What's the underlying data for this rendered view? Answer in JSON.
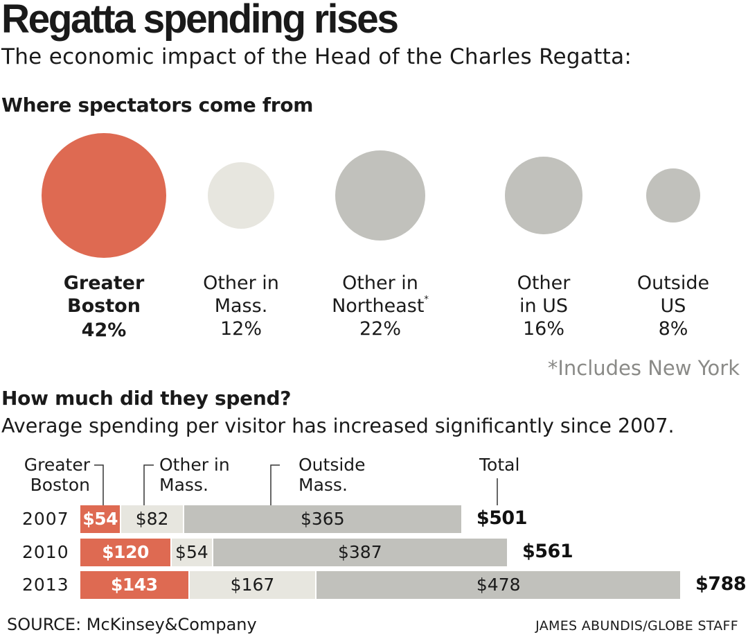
{
  "title": "Regatta spending rises",
  "subtitle": "The economic impact of the Head of the Charles Regatta:",
  "footnote": "*Includes New York",
  "source": "SOURCE: McKinsey&Company",
  "credit": "JAMES ABUNDIS/GLOBE STAFF",
  "colors": {
    "highlight": "#de6a52",
    "light_gray": "#e7e6df",
    "gray": "#c1c1bc",
    "footnote_gray": "#8a8a87"
  },
  "chart_data": [
    {
      "type": "bubble",
      "title": "Where spectators come from",
      "categories": [
        {
          "name_lines": [
            "Greater",
            "Boston"
          ],
          "value": 42,
          "label": "42%",
          "highlight": true
        },
        {
          "name_lines": [
            "Other in",
            "Mass."
          ],
          "value": 12,
          "label": "12%",
          "highlight": false
        },
        {
          "name_lines": [
            "Other in",
            "Northeast"
          ],
          "footnote_mark": "*",
          "value": 22,
          "label": "22%",
          "highlight": false
        },
        {
          "name_lines": [
            "Other",
            "in US"
          ],
          "value": 16,
          "label": "16%",
          "highlight": false
        },
        {
          "name_lines": [
            "Outside",
            "US"
          ],
          "value": 8,
          "label": "8%",
          "highlight": false
        }
      ],
      "unit": "%"
    },
    {
      "type": "stacked-bar",
      "orientation": "horizontal",
      "title": "How much did they spend?",
      "subtitle": "Average spending per visitor has increased significantly since 2007.",
      "legend": {
        "greater_boston": "Greater\nBoston",
        "other_mass": "Other in\nMass.",
        "outside_mass": "Outside\nMass.",
        "total": "Total"
      },
      "categories": [
        "2007",
        "2010",
        "2013"
      ],
      "series": [
        {
          "name": "Greater Boston",
          "values": [
            54,
            120,
            143
          ],
          "labels": [
            "$54",
            "$120",
            "$143"
          ]
        },
        {
          "name": "Other in Mass.",
          "values": [
            82,
            54,
            167
          ],
          "labels": [
            "$82",
            "$54",
            "$167"
          ]
        },
        {
          "name": "Outside Mass.",
          "values": [
            365,
            387,
            478
          ],
          "labels": [
            "$365",
            "$387",
            "$478"
          ]
        }
      ],
      "totals": [
        501,
        561,
        788
      ],
      "total_labels": [
        "$501",
        "$561",
        "$788"
      ],
      "unit": "$"
    }
  ]
}
